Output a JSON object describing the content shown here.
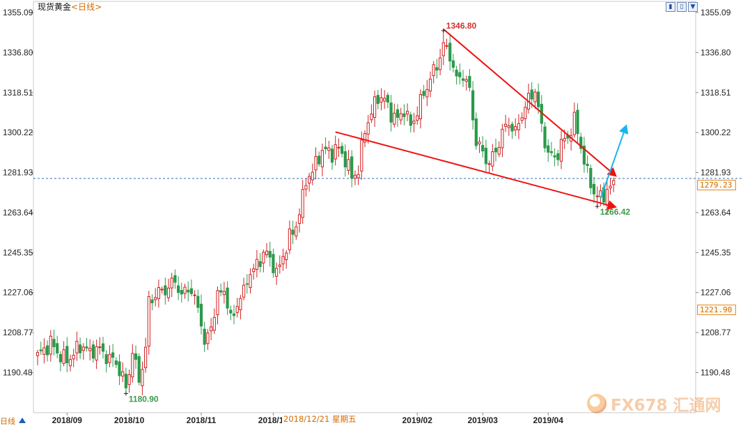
{
  "header": {
    "instrument": "现货黄金",
    "period": "<日线>"
  },
  "toolbar": {
    "buttons": [
      {
        "name": "zoom-out-button",
        "icon": "bar-chart-icon",
        "glyph": "▮"
      },
      {
        "name": "zoom-in-button",
        "icon": "bar-chart-icon",
        "glyph": "▯"
      },
      {
        "name": "scroll-down-button",
        "icon": "arrow-down-icon",
        "glyph": "▼"
      }
    ]
  },
  "status_bar": {
    "date_label": "2018/12/21  星期五",
    "corner_label": "日线"
  },
  "price_tags": {
    "current": "1279.23",
    "secondary": "1221.90"
  },
  "watermark": {
    "text": "FX678 汇通网"
  },
  "colors": {
    "up": "#d21f1f",
    "down": "#2a9a4a",
    "trendline": "#ee1111",
    "arrow_up": "#19b4ee",
    "price_line": "#2f6fb5",
    "annotation_high": "#d23030",
    "annotation_low": "#3c9a4a"
  },
  "chart_data": {
    "type": "candlestick",
    "title": "现货黄金<日线>",
    "ylim": [
      1180.0,
      1356.0
    ],
    "y_ticks": [
      1355.09,
      1336.8,
      1318.51,
      1300.22,
      1281.93,
      1263.64,
      1245.35,
      1227.06,
      1208.77,
      1190.48
    ],
    "x_ticks": [
      {
        "label": "2018/09",
        "index": 9
      },
      {
        "label": "2018/10",
        "index": 28
      },
      {
        "label": "2018/11",
        "index": 50
      },
      {
        "label": "2018/12",
        "index": 72
      },
      {
        "label": "2019/02",
        "index": 116
      },
      {
        "label": "2019/03",
        "index": 136
      },
      {
        "label": "2019/04",
        "index": 156
      }
    ],
    "current_price": 1279.23,
    "annotations": [
      {
        "label": "1346.80",
        "index": 124,
        "value": 1346.8,
        "kind": "high"
      },
      {
        "label": "1180.90",
        "index": 27,
        "value": 1180.9,
        "kind": "low"
      },
      {
        "label": "1266.42",
        "index": 171,
        "value": 1266.42,
        "kind": "low"
      }
    ],
    "lines": [
      {
        "name": "upper-trendline",
        "from": [
          124,
          1347.5
        ],
        "to": [
          177,
          1280.0
        ],
        "arrow": true
      },
      {
        "name": "lower-trendline",
        "from": [
          91,
          1300.5
        ],
        "to": [
          177,
          1266.0
        ],
        "arrow": true
      },
      {
        "name": "breakout-arrow",
        "from": [
          172,
          1270.0
        ],
        "to": [
          180,
          1304.0
        ],
        "arrow": true
      }
    ],
    "anchors": [
      [
        0,
        1198
      ],
      [
        4,
        1204
      ],
      [
        7,
        1198
      ],
      [
        9,
        1196
      ],
      [
        12,
        1201
      ],
      [
        14,
        1203
      ],
      [
        16,
        1199
      ],
      [
        18,
        1202
      ],
      [
        21,
        1198
      ],
      [
        24,
        1195
      ],
      [
        26,
        1188
      ],
      [
        27,
        1183
      ],
      [
        29,
        1200
      ],
      [
        31,
        1187
      ],
      [
        33,
        1201
      ],
      [
        34,
        1223
      ],
      [
        36,
        1226
      ],
      [
        38,
        1228
      ],
      [
        40,
        1229
      ],
      [
        42,
        1233
      ],
      [
        44,
        1225
      ],
      [
        46,
        1230
      ],
      [
        48,
        1224
      ],
      [
        50,
        1215
      ],
      [
        51,
        1202
      ],
      [
        53,
        1212
      ],
      [
        55,
        1225
      ],
      [
        57,
        1229
      ],
      [
        59,
        1214
      ],
      [
        61,
        1222
      ],
      [
        63,
        1227
      ],
      [
        64,
        1234
      ],
      [
        66,
        1237
      ],
      [
        68,
        1243
      ],
      [
        70,
        1245
      ],
      [
        72,
        1240
      ],
      [
        73,
        1235
      ],
      [
        75,
        1244
      ],
      [
        77,
        1252
      ],
      [
        79,
        1258
      ],
      [
        81,
        1270
      ],
      [
        82,
        1279
      ],
      [
        84,
        1282
      ],
      [
        86,
        1290
      ],
      [
        88,
        1292
      ],
      [
        90,
        1291
      ],
      [
        92,
        1293
      ],
      [
        94,
        1288
      ],
      [
        96,
        1280
      ],
      [
        98,
        1283
      ],
      [
        100,
        1302
      ],
      [
        102,
        1309
      ],
      [
        104,
        1317
      ],
      [
        106,
        1315
      ],
      [
        108,
        1309
      ],
      [
        110,
        1306
      ],
      [
        112,
        1311
      ],
      [
        114,
        1303
      ],
      [
        116,
        1310
      ],
      [
        118,
        1318
      ],
      [
        120,
        1325
      ],
      [
        122,
        1331
      ],
      [
        124,
        1340
      ],
      [
        126,
        1336
      ],
      [
        128,
        1324
      ],
      [
        130,
        1327
      ],
      [
        132,
        1319
      ],
      [
        134,
        1296
      ],
      [
        136,
        1291
      ],
      [
        138,
        1286
      ],
      [
        140,
        1292
      ],
      [
        142,
        1300
      ],
      [
        144,
        1305
      ],
      [
        146,
        1300
      ],
      [
        148,
        1309
      ],
      [
        150,
        1315
      ],
      [
        152,
        1320
      ],
      [
        154,
        1302
      ],
      [
        156,
        1291
      ],
      [
        158,
        1288
      ],
      [
        160,
        1295
      ],
      [
        162,
        1298
      ],
      [
        164,
        1306
      ],
      [
        166,
        1294
      ],
      [
        168,
        1281
      ],
      [
        170,
        1273
      ],
      [
        172,
        1270
      ],
      [
        174,
        1274
      ],
      [
        176,
        1276
      ]
    ]
  }
}
